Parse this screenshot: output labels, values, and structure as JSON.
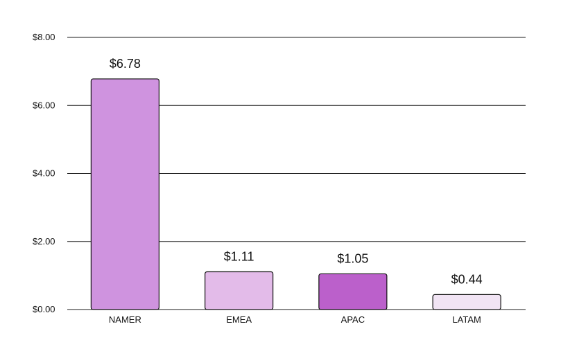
{
  "chart_data": {
    "type": "bar",
    "categories": [
      "NAMER",
      "EMEA",
      "APAC",
      "LATAM"
    ],
    "values": [
      6.78,
      1.11,
      1.05,
      0.44
    ],
    "value_labels": [
      "$6.78",
      "$1.11",
      "$1.05",
      "$0.44"
    ],
    "bar_colors": [
      "#cf93df",
      "#e3bbe9",
      "#bb60cb",
      "#f1e4f4"
    ],
    "yticks": [
      0,
      2,
      4,
      6,
      8
    ],
    "ytick_labels": [
      "$0.00",
      "$2.00",
      "$4.00",
      "$6.00",
      "$8.00"
    ],
    "ylim": [
      0,
      8
    ],
    "title": "",
    "xlabel": "",
    "ylabel": "",
    "grid": true,
    "legend": "none"
  }
}
